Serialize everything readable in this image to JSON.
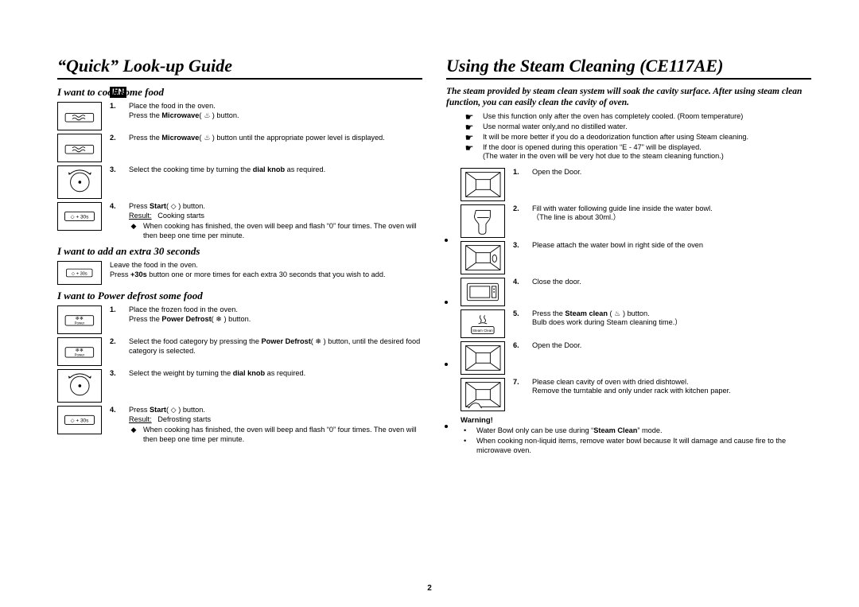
{
  "page_number": "2",
  "lang_badge": "EN",
  "left": {
    "title": "“Quick” Look-up Guide",
    "sec1": {
      "heading": "I want to cook some food",
      "steps": [
        {
          "fig": "btn-wave",
          "num": "1.",
          "text": "Place the food in the oven.\nPress the <b>Microwave</b>( <i>♨</i> ) button."
        },
        {
          "fig": "btn-wave",
          "num": "2.",
          "text": "Press the <b>Microwave</b>( <i>♨</i> ) button until the appropriate power level is displayed."
        },
        {
          "fig": "dial",
          "num": "3.",
          "text": "Select the cooking time by turning the <b>dial knob</b> as required."
        },
        {
          "fig": "btn-30s",
          "num": "4.",
          "text": "Press <b>Start</b>( ◇ ) button.\n<u>Result:</u>&nbsp;&nbsp;&nbsp;Cooking starts",
          "sub": "When cooking has finished, the oven will beep and flash “0” four times. The oven will then beep one time per minute."
        }
      ]
    },
    "sec2": {
      "heading": "I want to add an extra 30 seconds",
      "fig": "btn-30s",
      "text": "Leave the food in the oven.\nPress <b>+30s</b> button one or more times for each extra 30 seconds that you wish to add."
    },
    "sec3": {
      "heading": "I want to Power defrost some food",
      "steps": [
        {
          "fig": "btn-power",
          "num": "1.",
          "text": "Place the frozen food in the oven.\nPress the <b>Power Defrost</b>( ❄ ) button."
        },
        {
          "fig": "btn-power",
          "num": "2.",
          "text": "Select the food category by pressing the <b>Power Defrost</b>( ❄ ) button, until the desired food category is selected."
        },
        {
          "fig": "dial",
          "num": "3.",
          "text": "Select the weight by turning the <b>dial knob</b> as required."
        },
        {
          "fig": "btn-30s",
          "num": "4.",
          "text": "Press <b>Start</b>( ◇ ) button.\n<u>Result:</u>&nbsp;&nbsp;&nbsp;Defrosting starts",
          "sub": "When cooking has finished, the oven will beep and flash “0” four times. The oven will then beep one time per minute."
        }
      ]
    }
  },
  "right": {
    "title": "Using the Steam Cleaning (CE117AE)",
    "intro": "The steam provided by steam clean system will soak the cavity surface. After using steam clean function, you can easily clean the cavity of oven.",
    "hand_notes": [
      "Use this function only after the oven has completely cooled. (Room temperature)",
      "Use normal water only,and no distilled water.",
      "It will be more better if you do a deodorization function after using Steam cleaning.",
      "If the door is opened during this operation “E - 47” will be displayed.\n(The water in the oven will be very hot due to the steam cleaning function.)"
    ],
    "steps": [
      {
        "fig": "cavity-open",
        "num": "1.",
        "text": "Open the Door."
      },
      {
        "fig": "water-bowl",
        "num": "2.",
        "text": "Fill with water following guide line inside the water bowl.\n（The line is about 30ml.）"
      },
      {
        "fig": "cavity",
        "num": "3.",
        "text": "Please attach the water bowl in right side of the oven"
      },
      {
        "fig": "door-closed",
        "num": "4.",
        "text": "Close the door."
      },
      {
        "fig": "btn-steam",
        "num": "5.",
        "text": "Press the <b>Steam clean</b> ( ♨ ) button.\nBulb does work during Steam cleaning time.）"
      },
      {
        "fig": "cavity-open",
        "num": "6.",
        "text": "Open the Door."
      },
      {
        "fig": "cavity-hand",
        "num": "7.",
        "text": "Please clean cavity of oven with dried dishtowel.\nRemove the turntable and only under rack with kitchen paper."
      }
    ],
    "warning_head": "Warning!",
    "warnings": [
      "Water Bowl only can be use during “<b>Steam Clean</b>” mode.",
      "When cooking non-liquid items, remove water bowl because It will damage and cause fire to the microwave oven."
    ]
  },
  "icons": {
    "btn-wave": "<svg viewBox='0 0 56 36'><rect x='8' y='14' width='40' height='12' rx='2' fill='none' stroke='#000'/><path d='M18 18 q3 -3 6 0 t6 0 t6 0' fill='none' stroke='#000'/><path d='M18 22 q3 -3 6 0 t6 0 t6 0' fill='none' stroke='#000'/></svg>",
    "dial": "<svg viewBox='0 0 56 42'><circle cx='28' cy='21' r='13' fill='none' stroke='#000'/><circle cx='28' cy='21' r='2' fill='#000'/><path d='M14 10 a20 20 0 0 1 28 0' fill='none' stroke='#000'/><path d='M41 9 l3 -2 l-1 4 z' fill='#000'/><path d='M15 9 l-3 -2 l1 4 z' fill='#000'/></svg>",
    "btn-30s": "<svg viewBox='0 0 56 32'><rect x='8' y='10' width='40' height='12' rx='2' fill='none' stroke='#000'/><text x='28' y='19' font-size='7' font-family='Arial' text-anchor='middle'>◇ + 30s</text></svg>",
    "btn-power": "<svg viewBox='0 0 56 36'><rect x='8' y='12' width='40' height='14' rx='2' fill='none' stroke='#000'/><text x='28' y='18' font-size='7' text-anchor='middle'>❄❄</text><text x='28' y='24' font-size='5' font-family='Arial' text-anchor='middle'>Power</text></svg>",
    "btn-steam": "<svg viewBox='0 0 56 36'><path d='M25 6 q-2 3 0 5 q2 2 0 5' fill='none' stroke='#000'/><path d='M31 6 q-2 3 0 5 q2 2 0 5' fill='none' stroke='#000'/><path d='M22 18 q6 -3 12 0' fill='none' stroke='#000'/><rect x='12' y='22' width='32' height='10' rx='2' fill='none' stroke='#000'/><text x='28' y='29' font-size='5' font-family='Arial' text-anchor='middle'>Steam Clean</text></svg>",
    "cavity": "<svg viewBox='0 0 56 42'><rect x='4' y='4' width='48' height='34' fill='none' stroke='#000'/><path d='M4 4 L18 14 M52 4 L38 14 M4 38 L18 28 M52 38 L38 28' stroke='#000'/><rect x='18' y='14' width='20' height='14' fill='none' stroke='#000'/><ellipse cx='44' cy='22' rx='3' ry='5' fill='#fff' stroke='#000'/></svg>",
    "cavity-open": "<svg viewBox='0 0 56 42'><rect x='4' y='4' width='48' height='34' fill='none' stroke='#000'/><path d='M4 4 L18 14 M52 4 L38 14 M4 38 L18 28 M52 38 L38 28' stroke='#000'/><rect x='18' y='14' width='20' height='14' fill='none' stroke='#000'/></svg>",
    "cavity-hand": "<svg viewBox='0 0 56 42'><rect x='4' y='4' width='48' height='34' fill='none' stroke='#000'/><path d='M4 4 L18 14 M52 4 L38 14 M4 38 L18 28 M52 38 L38 28' stroke='#000'/><rect x='18' y='14' width='20' height='14' fill='none' stroke='#000'/><path d='M8 40 q6 -10 14 -6 l4 6' fill='#fff' stroke='#000'/></svg>",
    "water-bowl": "<svg viewBox='0 0 56 42'><path d='M18 6 h20 v8 q0 4 -3 7 l-3 4 v10 q0 4 -4 4 h-2 q-4 0 -4 -4 v-10 l-3 -4 q-3 -3 -3 -7 z' fill='#fff' stroke='#000'/><line x1='20' y1='16' x2='36' y2='16' stroke='#000'/></svg>",
    "door-closed": "<svg viewBox='0 0 56 36'><rect x='6' y='6' width='44' height='24' rx='2' fill='none' stroke='#000'/><rect x='10' y='10' width='28' height='16' fill='none' stroke='#000'/><rect x='41' y='10' width='6' height='16' fill='none' stroke='#000'/><circle cx='44' cy='14' r='1' fill='#000'/><circle cx='44' cy='18' r='1' fill='#000'/></svg>"
  }
}
